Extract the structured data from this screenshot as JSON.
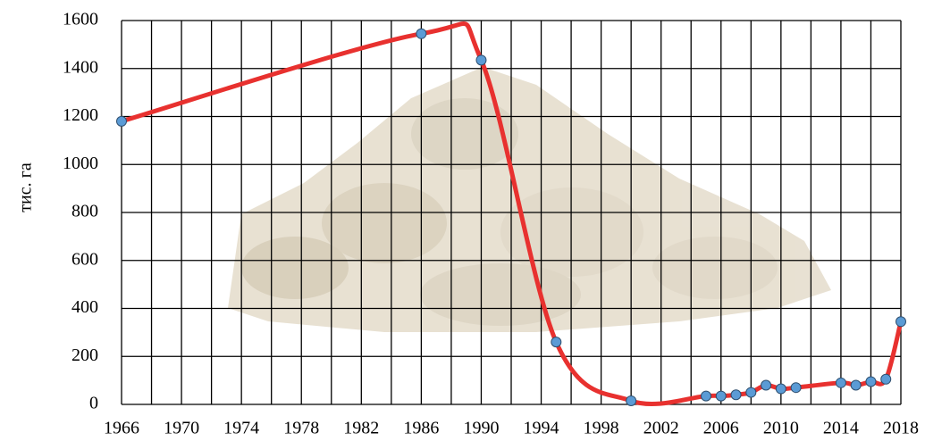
{
  "chart_data": {
    "type": "line",
    "y_label": "тис. га",
    "x": [
      1966,
      1986,
      1990,
      1995,
      2000,
      2005,
      2006,
      2007,
      2008,
      2009,
      2010,
      2011,
      2014,
      2015,
      2016,
      2017,
      2018
    ],
    "series": [
      {
        "color": "#e8312f",
        "marker_color": "#5b9bd5",
        "values": [
          1180,
          1545,
          1435,
          260,
          15,
          35,
          35,
          40,
          50,
          80,
          65,
          70,
          90,
          80,
          95,
          105,
          345
        ]
      }
    ],
    "xlim": [
      1966,
      2018
    ],
    "xticks": [
      1966,
      1970,
      1974,
      1978,
      1982,
      1986,
      1990,
      1994,
      1998,
      2002,
      2006,
      2010,
      2014,
      2018
    ],
    "ylim": [
      0,
      1600
    ],
    "yticks": [
      0,
      200,
      400,
      600,
      800,
      1000,
      1200,
      1400,
      1600
    ],
    "grid": true,
    "xgrid_minor": true,
    "smooth": true
  }
}
